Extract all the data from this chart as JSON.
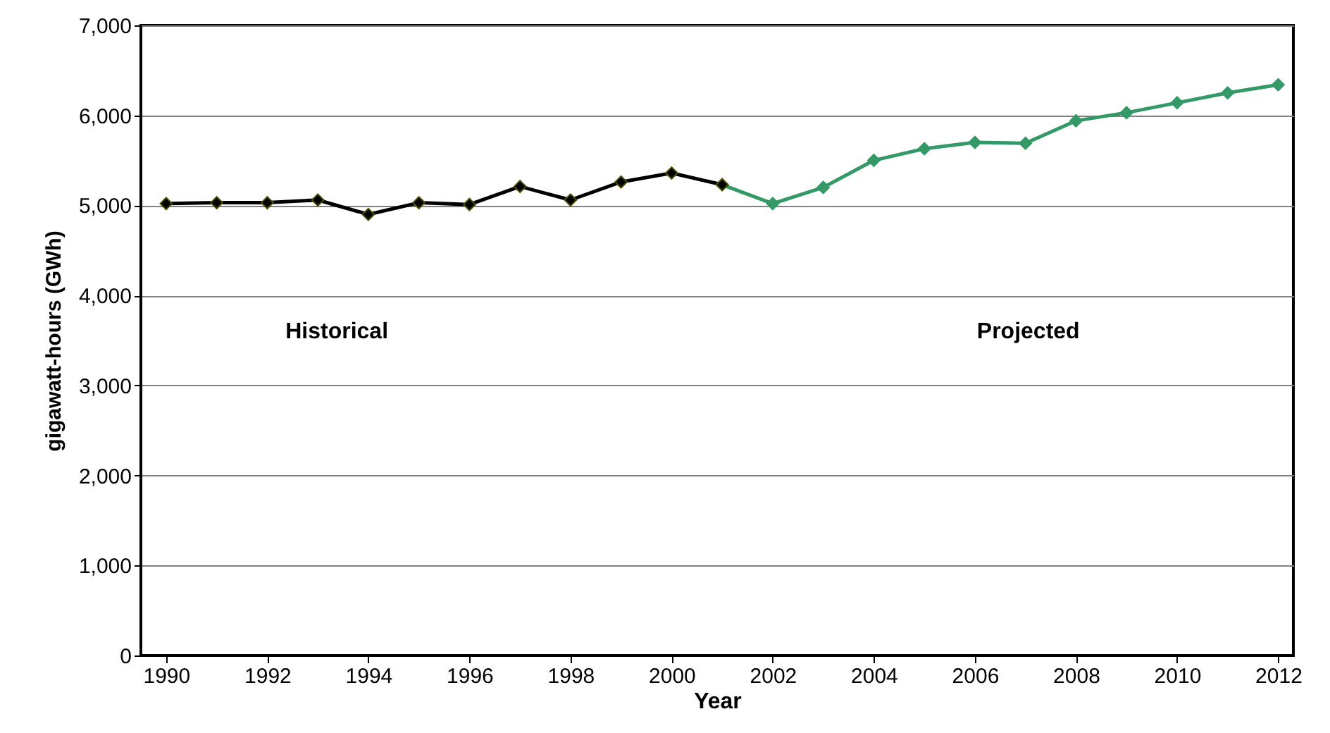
{
  "chart_data": {
    "type": "line",
    "xlabel": "Year",
    "ylabel": "gigawatt-hours (GWh)",
    "xlim": [
      1989.5,
      2012.3
    ],
    "xticks": [
      1990,
      1992,
      1994,
      1996,
      1998,
      2000,
      2002,
      2004,
      2006,
      2008,
      2010,
      2012
    ],
    "ylim": [
      0,
      7000
    ],
    "yticks": [
      0,
      {
        "value": 1000,
        "label": "1,000"
      },
      {
        "value": 2000,
        "label": "2,000"
      },
      {
        "value": 3000,
        "label": "3,000"
      },
      {
        "value": 4000,
        "label": "4,000"
      },
      {
        "value": 5000,
        "label": "5,000"
      },
      {
        "value": 6000,
        "label": "6,000"
      },
      {
        "value": 7000,
        "label": "7,000"
      }
    ],
    "grid": "y",
    "marker": "diamond",
    "line_style": "solid",
    "series": [
      {
        "color": "#339966",
        "x": [
          2001,
          2002,
          2003,
          2004,
          2005,
          2006,
          2007,
          2008,
          2009,
          2010,
          2011,
          2012
        ],
        "values": [
          5230,
          5020,
          5200,
          5500,
          5630,
          5700,
          5690,
          5940,
          6030,
          6140,
          6250,
          6340
        ]
      },
      {
        "color": "#000000",
        "x": [
          1990,
          1991,
          1992,
          1993,
          1994,
          1995,
          1996,
          1997,
          1998,
          1999,
          2000,
          2001
        ],
        "values": [
          5020,
          5030,
          5030,
          5060,
          4900,
          5030,
          5010,
          5210,
          5060,
          5260,
          5360,
          5230
        ]
      }
    ],
    "annotations": [
      "Historical",
      "Projected"
    ]
  }
}
